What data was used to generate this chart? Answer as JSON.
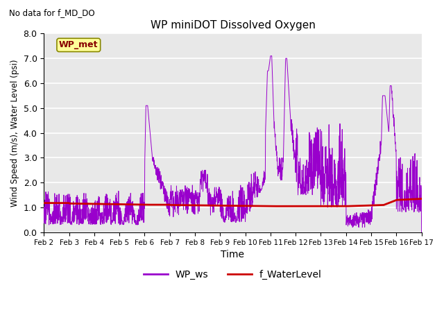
{
  "title": "WP miniDOT Dissolved Oxygen",
  "top_left_text": "No data for f_MD_DO",
  "ylabel": "Wind Speed (m/s), Water Level (psi)",
  "xlabel": "Time",
  "ylim": [
    0.0,
    8.0
  ],
  "yticks": [
    0.0,
    1.0,
    2.0,
    3.0,
    4.0,
    5.0,
    6.0,
    7.0,
    8.0
  ],
  "xtick_labels": [
    "Feb 2",
    "Feb 3",
    "Feb 4",
    "Feb 5",
    "Feb 6",
    "Feb 7",
    "Feb 8",
    "Feb 9",
    "Feb 10",
    "Feb 11",
    "Feb 12",
    "Feb 13",
    "Feb 14",
    "Feb 15",
    "Feb 16",
    "Feb 17"
  ],
  "legend_labels": [
    "WP_ws",
    "f_WaterLevel"
  ],
  "legend_colors": [
    "#9900cc",
    "#cc0000"
  ],
  "wp_ws_color": "#9900cc",
  "f_water_color": "#cc0000",
  "axes_bg_color": "#e8e8e8",
  "grid_color": "white",
  "annotation_box_color": "#ffff99",
  "annotation_box_edge": "#888800",
  "annotation_text": "WP_met",
  "annotation_text_color": "#880000",
  "figsize": [
    6.4,
    4.8
  ],
  "dpi": 100
}
